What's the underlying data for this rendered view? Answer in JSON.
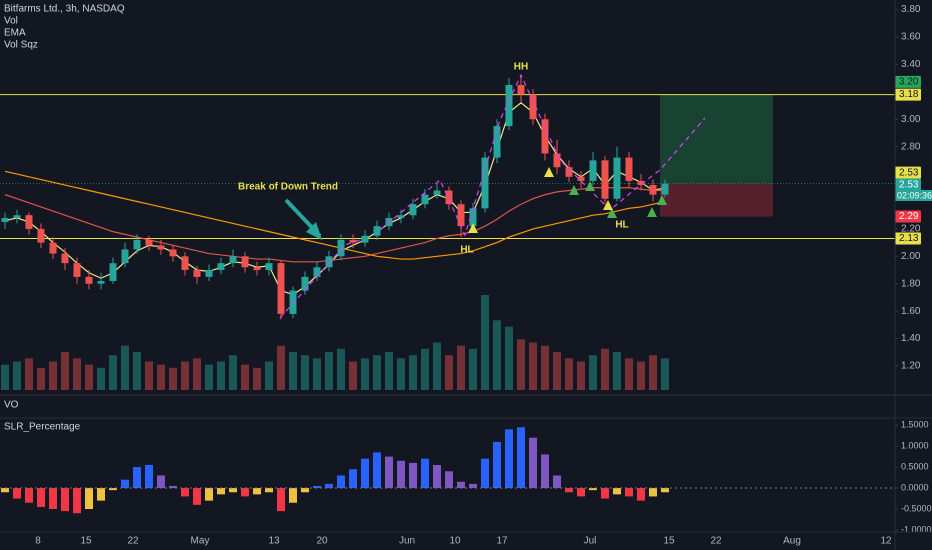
{
  "header": {
    "title": "Bitfarms Ltd., 3h, NASDAQ",
    "indicators": [
      "Vol",
      "EMA",
      "Vol Sqz"
    ]
  },
  "chart_data": {
    "type": "candlestick",
    "candles": [
      [
        2.25,
        2.32,
        2.2,
        2.28
      ],
      [
        2.28,
        2.34,
        2.24,
        2.3
      ],
      [
        2.3,
        2.32,
        2.16,
        2.2
      ],
      [
        2.2,
        2.24,
        2.06,
        2.1
      ],
      [
        2.1,
        2.14,
        1.98,
        2.02
      ],
      [
        2.02,
        2.06,
        1.9,
        1.95
      ],
      [
        1.95,
        1.99,
        1.8,
        1.85
      ],
      [
        1.85,
        1.9,
        1.76,
        1.8
      ],
      [
        1.8,
        1.88,
        1.76,
        1.82
      ],
      [
        1.82,
        1.99,
        1.8,
        1.95
      ],
      [
        1.95,
        2.1,
        1.92,
        2.05
      ],
      [
        2.05,
        2.16,
        2.02,
        2.12
      ],
      [
        2.12,
        2.15,
        2.04,
        2.08
      ],
      [
        2.08,
        2.12,
        2.01,
        2.05
      ],
      [
        2.05,
        2.08,
        1.96,
        2.0
      ],
      [
        2.0,
        2.03,
        1.86,
        1.9
      ],
      [
        1.9,
        1.93,
        1.8,
        1.85
      ],
      [
        1.85,
        1.94,
        1.82,
        1.9
      ],
      [
        1.9,
        1.99,
        1.87,
        1.95
      ],
      [
        1.95,
        2.05,
        1.92,
        2.0
      ],
      [
        2.0,
        2.03,
        1.88,
        1.92
      ],
      [
        1.92,
        1.96,
        1.86,
        1.9
      ],
      [
        1.9,
        1.99,
        1.86,
        1.95
      ],
      [
        1.95,
        1.97,
        1.54,
        1.58
      ],
      [
        1.58,
        1.78,
        1.55,
        1.75
      ],
      [
        1.75,
        1.89,
        1.72,
        1.85
      ],
      [
        1.85,
        1.96,
        1.82,
        1.92
      ],
      [
        1.92,
        2.04,
        1.89,
        2.0
      ],
      [
        2.0,
        2.16,
        1.97,
        2.12
      ],
      [
        2.12,
        2.16,
        2.06,
        2.1
      ],
      [
        2.1,
        2.19,
        2.07,
        2.15
      ],
      [
        2.15,
        2.26,
        2.12,
        2.22
      ],
      [
        2.22,
        2.32,
        2.19,
        2.28
      ],
      [
        2.28,
        2.34,
        2.24,
        2.3
      ],
      [
        2.3,
        2.42,
        2.27,
        2.38
      ],
      [
        2.38,
        2.49,
        2.35,
        2.45
      ],
      [
        2.45,
        2.53,
        2.42,
        2.48
      ],
      [
        2.48,
        2.51,
        2.34,
        2.38
      ],
      [
        2.38,
        2.41,
        2.14,
        2.22
      ],
      [
        2.22,
        2.39,
        2.18,
        2.35
      ],
      [
        2.35,
        2.76,
        2.32,
        2.72
      ],
      [
        2.72,
        3.0,
        2.68,
        2.95
      ],
      [
        2.95,
        3.3,
        2.92,
        3.25
      ],
      [
        3.25,
        3.32,
        3.12,
        3.18
      ],
      [
        3.18,
        3.22,
        2.96,
        3.0
      ],
      [
        3.0,
        3.04,
        2.7,
        2.75
      ],
      [
        2.75,
        2.85,
        2.6,
        2.65
      ],
      [
        2.65,
        2.7,
        2.54,
        2.58
      ],
      [
        2.58,
        2.62,
        2.5,
        2.55
      ],
      [
        2.55,
        2.76,
        2.52,
        2.7
      ],
      [
        2.7,
        2.73,
        2.38,
        2.42
      ],
      [
        2.42,
        2.8,
        2.4,
        2.72
      ],
      [
        2.72,
        2.76,
        2.5,
        2.55
      ],
      [
        2.55,
        2.6,
        2.48,
        2.52
      ],
      [
        2.52,
        2.56,
        2.4,
        2.45
      ],
      [
        2.45,
        2.56,
        2.43,
        2.53
      ]
    ],
    "up_color": "#26a69a",
    "down_color": "#ef5350",
    "volume": [
      0.8,
      0.9,
      1.0,
      0.7,
      0.9,
      1.2,
      1.0,
      0.8,
      0.7,
      1.1,
      1.4,
      1.2,
      0.9,
      0.8,
      0.7,
      0.9,
      1.0,
      0.8,
      0.9,
      1.1,
      0.8,
      0.7,
      0.9,
      1.4,
      1.2,
      1.1,
      1.0,
      1.2,
      1.3,
      0.9,
      1.0,
      1.1,
      1.2,
      1.0,
      1.1,
      1.3,
      1.5,
      1.1,
      1.4,
      1.3,
      3.0,
      2.2,
      2.0,
      1.6,
      1.5,
      1.4,
      1.2,
      1.0,
      0.9,
      1.1,
      1.3,
      1.2,
      1.0,
      0.9,
      1.1,
      1.0
    ],
    "series": [
      {
        "color": "#f0e68c",
        "values": [
          2.26,
          2.28,
          2.25,
          2.18,
          2.1,
          2.03,
          1.95,
          1.88,
          1.84,
          1.88,
          1.96,
          2.04,
          2.08,
          2.07,
          2.03,
          1.96,
          1.9,
          1.89,
          1.92,
          1.96,
          1.95,
          1.92,
          1.93,
          1.75,
          1.72,
          1.78,
          1.86,
          1.94,
          2.04,
          2.08,
          2.12,
          2.18,
          2.24,
          2.28,
          2.34,
          2.4,
          2.45,
          2.42,
          2.32,
          2.32,
          2.52,
          2.78,
          3.05,
          3.12,
          3.05,
          2.88,
          2.74,
          2.64,
          2.58,
          2.64,
          2.52,
          2.62,
          2.58,
          2.54,
          2.48,
          2.5
        ]
      },
      {
        "color": "#e0544a",
        "values": [
          2.45,
          2.42,
          2.39,
          2.36,
          2.33,
          2.3,
          2.27,
          2.24,
          2.21,
          2.18,
          2.16,
          2.14,
          2.12,
          2.1,
          2.08,
          2.06,
          2.04,
          2.02,
          2.01,
          2.0,
          1.99,
          1.98,
          1.98,
          1.97,
          1.96,
          1.96,
          1.96,
          1.97,
          1.98,
          1.99,
          2.0,
          2.02,
          2.04,
          2.06,
          2.08,
          2.1,
          2.13,
          2.15,
          2.16,
          2.18,
          2.22,
          2.27,
          2.33,
          2.38,
          2.42,
          2.45,
          2.47,
          2.48,
          2.49,
          2.5,
          2.5,
          2.5,
          2.5,
          2.49,
          2.48,
          2.48
        ]
      },
      {
        "color": "#ff9800",
        "values": [
          2.62,
          2.6,
          2.58,
          2.56,
          2.54,
          2.52,
          2.5,
          2.48,
          2.46,
          2.44,
          2.42,
          2.4,
          2.38,
          2.36,
          2.34,
          2.32,
          2.3,
          2.28,
          2.26,
          2.24,
          2.22,
          2.2,
          2.18,
          2.16,
          2.14,
          2.12,
          2.1,
          2.08,
          2.06,
          2.04,
          2.02,
          2.0,
          1.99,
          1.98,
          1.98,
          1.99,
          2.0,
          2.01,
          2.02,
          2.04,
          2.07,
          2.1,
          2.14,
          2.17,
          2.2,
          2.22,
          2.24,
          2.26,
          2.28,
          2.3,
          2.31,
          2.33,
          2.35,
          2.36,
          2.38,
          2.4
        ]
      }
    ],
    "ylim": [
      1.01,
      3.87
    ],
    "yticks": [
      {
        "value": 3.8,
        "label": "3.80"
      },
      {
        "value": 3.6,
        "label": "3.60"
      },
      {
        "value": 3.4,
        "label": "3.40"
      },
      {
        "value": 3.0,
        "label": "3.00"
      },
      {
        "value": 2.8,
        "label": "2.80"
      },
      {
        "value": 2.2,
        "label": "2.20"
      },
      {
        "value": 2.0,
        "label": "2.00"
      },
      {
        "value": 1.8,
        "label": "1.80"
      },
      {
        "value": 1.6,
        "label": "1.60"
      },
      {
        "value": 1.4,
        "label": "1.40"
      },
      {
        "value": 1.2,
        "label": "1.20"
      }
    ],
    "levels": [
      {
        "value": 3.18,
        "label": "3.18"
      },
      {
        "value": 2.13,
        "label": "2.13"
      }
    ],
    "position": {
      "target": {
        "value": 3.2,
        "label": "3.20"
      },
      "entry": {
        "value": 2.53,
        "label": "2.53"
      },
      "last": {
        "value": 2.53,
        "label": "2.53"
      },
      "stop": {
        "value": 2.29,
        "label": "2.29"
      },
      "countdown": "02:09:36"
    },
    "annotations": [
      "Break of Down Trend",
      "HH",
      "HL",
      "HL"
    ],
    "xaxis_labels": [
      "8",
      "15",
      "22",
      "May",
      "13",
      "20",
      "Jun",
      "10",
      "17",
      "Jul",
      "15",
      "22",
      "Aug",
      "12"
    ],
    "panes": [
      "VO",
      "SLR_Percentage"
    ],
    "oscillator": {
      "values": [
        -0.1,
        -0.25,
        -0.35,
        -0.45,
        -0.5,
        -0.55,
        -0.6,
        -0.5,
        -0.3,
        -0.05,
        0.2,
        0.5,
        0.55,
        0.3,
        0.05,
        -0.2,
        -0.4,
        -0.3,
        -0.15,
        -0.1,
        -0.2,
        -0.15,
        -0.1,
        -0.55,
        -0.35,
        -0.1,
        0.05,
        0.1,
        0.3,
        0.45,
        0.7,
        0.85,
        0.75,
        0.65,
        0.6,
        0.7,
        0.55,
        0.4,
        0.15,
        0.1,
        0.7,
        1.1,
        1.4,
        1.45,
        1.2,
        0.8,
        0.3,
        -0.1,
        -0.2,
        -0.05,
        -0.25,
        -0.15,
        -0.2,
        -0.3,
        -0.2,
        -0.1
      ],
      "ylim": [
        -1.0,
        1.67
      ],
      "yticks": [
        {
          "value": 1.5,
          "label": "1.5000"
        },
        {
          "value": 1.0,
          "label": "1.0000"
        },
        {
          "value": 0.5,
          "label": "0.5000"
        },
        {
          "value": 0,
          "label": "0.0000"
        },
        {
          "value": -0.5,
          "label": "-0.5000"
        },
        {
          "value": -1.0,
          "label": "-1.0000"
        }
      ],
      "pos_rise_color": "#2962ff",
      "pos_fall_color": "#7e57c2",
      "neg_fall_color": "#f23645",
      "neg_rise_color": "#f0c040"
    }
  }
}
